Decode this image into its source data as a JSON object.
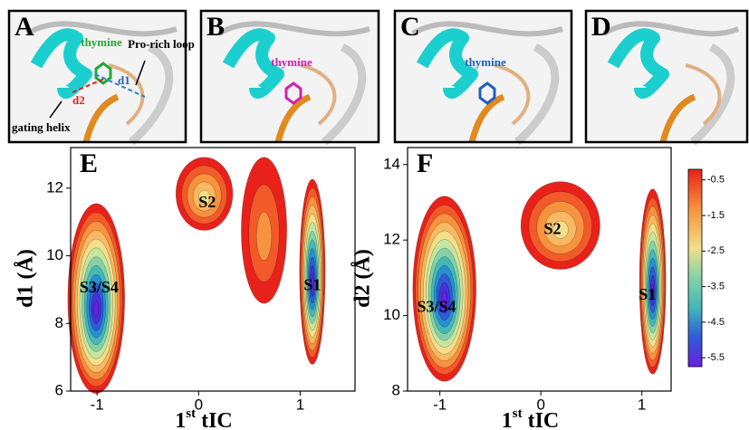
{
  "panels": [
    {
      "label": "A",
      "annotations": {
        "thymine": "thymine",
        "loop": "Pro-rich loop",
        "d1": "d1",
        "d2": "d2",
        "helix": "gating helix"
      }
    },
    {
      "label": "B",
      "annotations": {
        "thymine": "thymine"
      }
    },
    {
      "label": "C",
      "annotations": {
        "thymine": "thymine"
      }
    },
    {
      "label": "D"
    }
  ],
  "plots": [
    {
      "label": "E",
      "xlabel": {
        "base": "1",
        "sup": "st",
        "rest": " tIC"
      },
      "ylabel": "d1 (Å)",
      "xlim": [
        -1.26,
        1.54
      ],
      "ylim": [
        6,
        13.2
      ],
      "xticks": [
        -1,
        0,
        1
      ],
      "yticks": [
        6,
        8,
        10,
        12
      ],
      "states": [
        "S3/S4",
        "S2",
        "S1"
      ]
    },
    {
      "label": "F",
      "xlabel": {
        "base": "1",
        "sup": "st",
        "rest": " tIC"
      },
      "ylabel": "d2 (Å)",
      "xlim": [
        -1.32,
        1.29
      ],
      "ylim": [
        8,
        14.45
      ],
      "xticks": [
        -1,
        0,
        1
      ],
      "yticks": [
        8,
        10,
        12,
        14
      ],
      "states": [
        "S3/S4",
        "S2",
        "S1"
      ]
    }
  ],
  "colorbar": {
    "lim": [
      -0.2,
      -5.75
    ],
    "ticks": [
      -0.5,
      -1.5,
      -2.5,
      -3.5,
      -4.5,
      -5.5
    ]
  }
}
